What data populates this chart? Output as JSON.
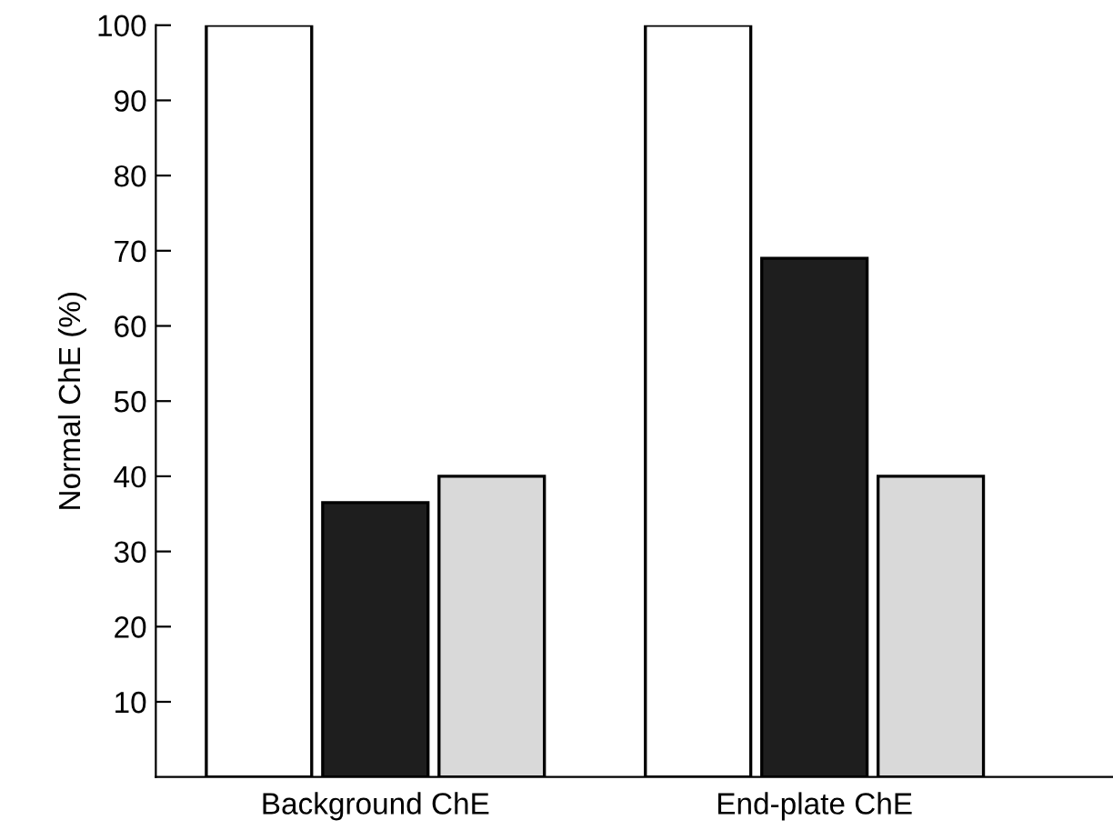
{
  "chart_data": {
    "type": "bar",
    "ylabel": "Normal ChE (%)",
    "categories": [
      "Background ChE",
      "End-plate ChE"
    ],
    "series": [
      {
        "color": "#ffffff",
        "values": [
          100,
          100
        ]
      },
      {
        "color": "#1e1e1e",
        "values": [
          36.5,
          69
        ]
      },
      {
        "color": "#d9d9d9",
        "values": [
          40,
          40
        ]
      }
    ],
    "ylim": [
      0,
      100
    ],
    "yticks": [
      10,
      20,
      30,
      40,
      50,
      60,
      70,
      80,
      90,
      100
    ],
    "grid": false,
    "legend": false
  }
}
